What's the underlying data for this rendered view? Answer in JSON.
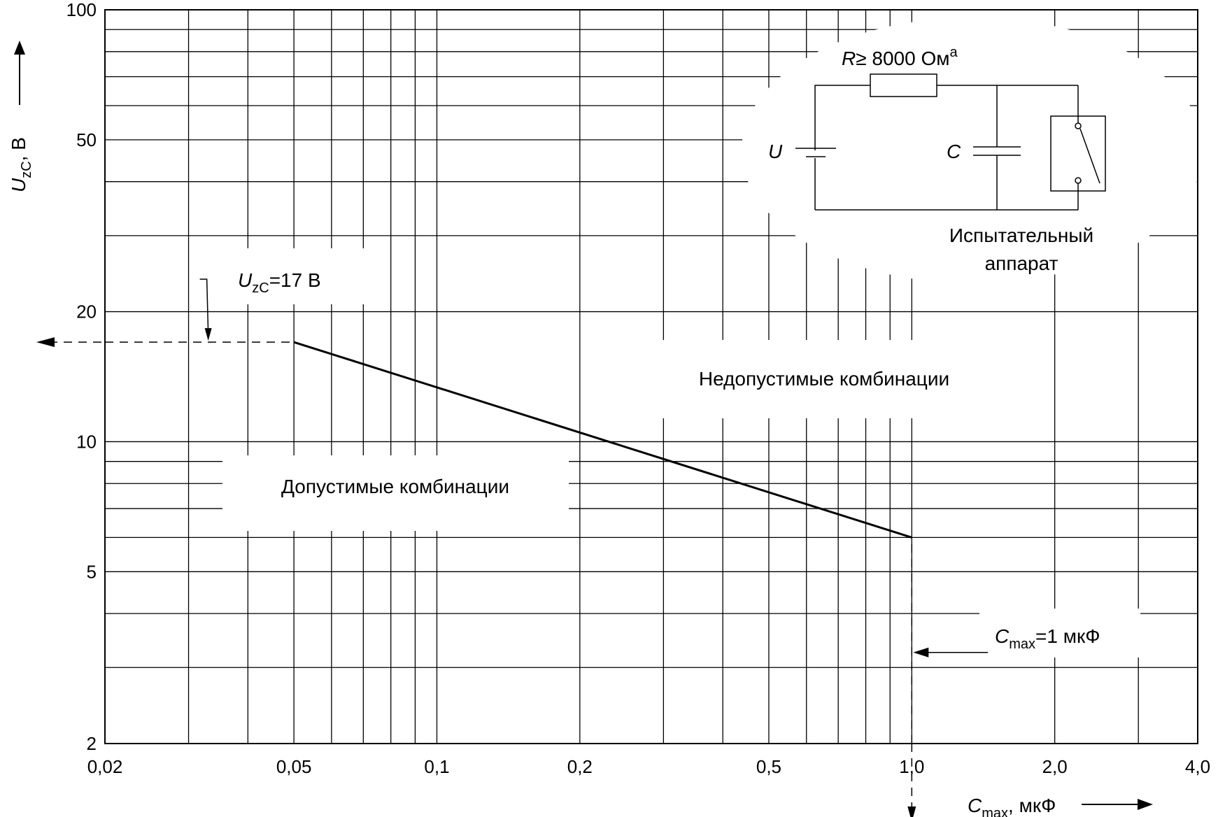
{
  "chart_data": {
    "type": "line",
    "title": "",
    "xlabel": {
      "symbol": "C",
      "subscript": "max",
      "unit": ", мкФ"
    },
    "ylabel": {
      "symbol": "U",
      "subscript": "zC",
      "unit": ", В"
    },
    "xscale": "log",
    "yscale": "log",
    "xlim": [
      0.02,
      4.0
    ],
    "ylim": [
      2,
      100
    ],
    "grid": true,
    "x_ticks": [
      {
        "value": 0.02,
        "label": "0,02"
      },
      {
        "value": 0.05,
        "label": "0,05"
      },
      {
        "value": 0.1,
        "label": "0,1"
      },
      {
        "value": 0.2,
        "label": "0,2"
      },
      {
        "value": 0.5,
        "label": "0,5"
      },
      {
        "value": 1.0,
        "label": "1,0"
      },
      {
        "value": 2.0,
        "label": "2,0"
      },
      {
        "value": 4.0,
        "label": "4,0"
      }
    ],
    "y_ticks": [
      {
        "value": 2,
        "label": "2"
      },
      {
        "value": 5,
        "label": "5"
      },
      {
        "value": 10,
        "label": "10"
      },
      {
        "value": 20,
        "label": "20"
      },
      {
        "value": 50,
        "label": "50"
      },
      {
        "value": 100,
        "label": "100"
      }
    ],
    "x_grid": [
      0.02,
      0.03,
      0.04,
      0.05,
      0.06,
      0.07,
      0.08,
      0.09,
      0.1,
      0.2,
      0.3,
      0.4,
      0.5,
      0.6,
      0.7,
      0.8,
      0.9,
      1.0,
      2.0,
      3.0,
      4.0
    ],
    "y_grid": [
      2,
      3,
      4,
      5,
      6,
      7,
      8,
      9,
      10,
      20,
      30,
      40,
      50,
      60,
      70,
      80,
      90,
      100
    ],
    "series": [
      {
        "x": [
          0.05,
          1.0
        ],
        "y": [
          17,
          6.0
        ]
      }
    ],
    "reference_lines": [
      {
        "style": "dashed",
        "x": [
          0.02,
          0.05
        ],
        "y": [
          17,
          17
        ]
      },
      {
        "style": "dashed",
        "x": [
          1.0,
          1.0
        ],
        "y": [
          2,
          6.0
        ]
      }
    ],
    "annotations": {
      "uzc_note": {
        "symbol": "U",
        "subscript": "zC",
        "text": "=17 В",
        "x": 0.033,
        "y": 17
      },
      "cmax_note": {
        "symbol": "C",
        "subscript": "max",
        "text": "=1 мкФ",
        "x": 1.0,
        "y": 3.25
      },
      "allowed_region": "Допустимые комбинации",
      "forbidden_region": "Недопустимые комбинации"
    },
    "inset": {
      "resistor_label": "R≥ 8000 Ом",
      "resistor_symbol": "R",
      "resistor_value": "≥ 8000 Ом",
      "resistor_superscript": "a",
      "source_label": "U",
      "capacitor_label": "C",
      "device_label_line1": "Испытательный",
      "device_label_line2": "аппарат"
    }
  }
}
